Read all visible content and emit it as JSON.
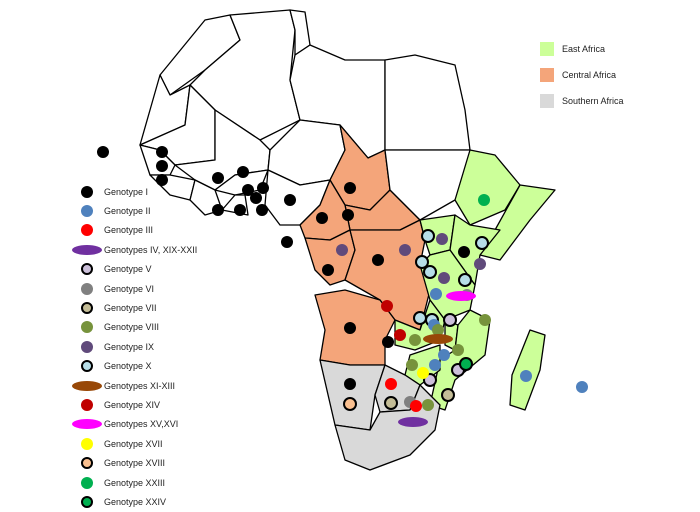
{
  "colors": {
    "east": "#ccff99",
    "central": "#f4a57a",
    "southern": "#d9d9d9",
    "border": "#000000"
  },
  "region_legend": [
    {
      "label": "East Africa",
      "color": "#ccff99"
    },
    {
      "label": "Central Africa",
      "color": "#f4a57a"
    },
    {
      "label": "Southern Africa",
      "color": "#d9d9d9"
    }
  ],
  "genotypes": [
    {
      "id": "I",
      "label": "Genotype I",
      "shape": "dot",
      "fill": "#000000"
    },
    {
      "id": "II",
      "label": "Genotype II",
      "shape": "dot",
      "fill": "#4f81bd"
    },
    {
      "id": "III",
      "label": "Genotype III",
      "shape": "dot",
      "fill": "#ff0000"
    },
    {
      "id": "IV",
      "label": "Genotypes IV, XIX-XXII",
      "shape": "ellipse",
      "fill": "#7030a0"
    },
    {
      "id": "V",
      "label": "Genotype V",
      "shape": "dot",
      "fill": "#ccc0da",
      "ring": "#000000"
    },
    {
      "id": "VI",
      "label": "Genotype VI",
      "shape": "dot",
      "fill": "#808080"
    },
    {
      "id": "VII",
      "label": "Genotype VII",
      "shape": "dot",
      "fill": "#c4bd97",
      "ring": "#000000"
    },
    {
      "id": "VIII",
      "label": "Genotype VIII",
      "shape": "dot",
      "fill": "#77933c"
    },
    {
      "id": "IX",
      "label": "Genotype  IX",
      "shape": "dot",
      "fill": "#604a7b"
    },
    {
      "id": "X",
      "label": "Genotype X",
      "shape": "dot",
      "fill": "#b7dee8",
      "ring": "#000000"
    },
    {
      "id": "XI",
      "label": "Genotypes XI-XIII",
      "shape": "ellipse",
      "fill": "#984807"
    },
    {
      "id": "XIV",
      "label": "Genotype XIV",
      "shape": "dot",
      "fill": "#c00000"
    },
    {
      "id": "XV",
      "label": "Genotypes XV,XVI",
      "shape": "ellipse",
      "fill": "#ff00ff"
    },
    {
      "id": "XVII",
      "label": "Genotype XVII",
      "shape": "dot",
      "fill": "#ffff00"
    },
    {
      "id": "XVIII",
      "label": "Genotype XVIII",
      "shape": "dot",
      "fill": "#fac090",
      "ring": "#000000"
    },
    {
      "id": "XXIII",
      "label": "Genotype XXIII",
      "shape": "dot",
      "fill": "#00b050"
    },
    {
      "id": "XXIV",
      "label": "Genotype XXIV",
      "shape": "dot",
      "fill": "#00b050",
      "ring": "#000000"
    }
  ]
}
